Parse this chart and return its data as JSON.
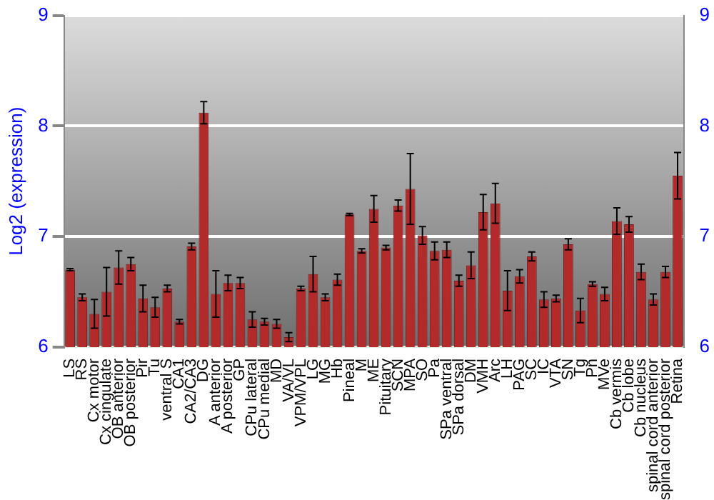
{
  "chart_data": {
    "type": "bar",
    "ylabel": "Log2 (expression)",
    "categories": [
      "LS",
      "RS",
      "Cx motor",
      "Cx cingulate",
      "OB anterior",
      "OB posterior",
      "Pir",
      "Tu",
      "ventral S",
      "CA1",
      "CA2/CA3",
      "DG",
      "A anterior",
      "A posterior",
      "GP",
      "CPu lateral",
      "CPu medial",
      "MD",
      "VA/VL",
      "VPM/VPL",
      "LG",
      "MG",
      "Hb",
      "Pineal",
      "M",
      "ME",
      "Pituitary",
      "SCN",
      "MPA",
      "SO",
      "Pa",
      "SPa ventral",
      "SPa dorsal",
      "DM",
      "VMH",
      "Arc",
      "LH",
      "PAG",
      "SC",
      "IC",
      "VTA",
      "SN",
      "Tg",
      "Pn",
      "MVe",
      "Cb vermis",
      "Cb lobe",
      "Cb nucleus",
      "spinal cord anterior",
      "spinal cord posterior",
      "Retina"
    ],
    "values": [
      6.7,
      6.45,
      6.3,
      6.5,
      6.72,
      6.75,
      6.44,
      6.36,
      6.53,
      6.23,
      6.91,
      8.12,
      6.48,
      6.58,
      6.58,
      6.25,
      6.23,
      6.21,
      6.09,
      6.53,
      6.66,
      6.45,
      6.61,
      7.2,
      6.87,
      7.25,
      6.9,
      7.28,
      7.43,
      7.01,
      6.87,
      6.88,
      6.6,
      6.74,
      7.22,
      7.3,
      6.51,
      6.64,
      6.82,
      6.43,
      6.44,
      6.93,
      6.33,
      6.57,
      6.48,
      7.14,
      7.11,
      6.68,
      6.43,
      6.68,
      7.55
    ],
    "errors": [
      0.01,
      0.03,
      0.13,
      0.22,
      0.15,
      0.06,
      0.12,
      0.09,
      0.03,
      0.02,
      0.03,
      0.1,
      0.21,
      0.07,
      0.05,
      0.07,
      0.03,
      0.04,
      0.04,
      0.02,
      0.16,
      0.03,
      0.05,
      0.01,
      0.02,
      0.12,
      0.02,
      0.05,
      0.32,
      0.08,
      0.08,
      0.07,
      0.05,
      0.12,
      0.16,
      0.18,
      0.18,
      0.06,
      0.04,
      0.07,
      0.03,
      0.05,
      0.11,
      0.02,
      0.06,
      0.12,
      0.07,
      0.07,
      0.05,
      0.05,
      0.21
    ],
    "color": "#b22a2a",
    "ylim": [
      6,
      9
    ],
    "yticks": [
      6,
      7,
      8,
      9
    ],
    "y2lim": [
      6,
      9
    ],
    "y2ticks": [
      6,
      7,
      8,
      9
    ],
    "grid": "y"
  }
}
